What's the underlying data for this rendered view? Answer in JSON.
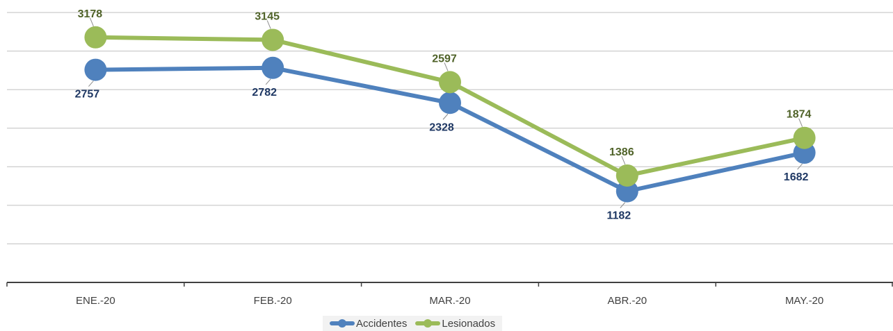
{
  "chart_data": {
    "type": "line",
    "categories": [
      "ENE.-20",
      "FEB.-20",
      "MAR.-20",
      "ABR.-20",
      "MAY.-20"
    ],
    "series": [
      {
        "name": "Accidentes",
        "values": [
          2757,
          2782,
          2328,
          1182,
          1682
        ],
        "color": "#4f81bd",
        "label_color": "#1f3864"
      },
      {
        "name": "Lesionados",
        "values": [
          3178,
          3145,
          2597,
          1386,
          1874
        ],
        "color": "#9bbb59",
        "label_color": "#4f6228"
      }
    ],
    "title": "",
    "xlabel": "",
    "ylabel": "",
    "ylim": [
      0,
      3500
    ],
    "grid": true,
    "legend_position": "bottom"
  }
}
